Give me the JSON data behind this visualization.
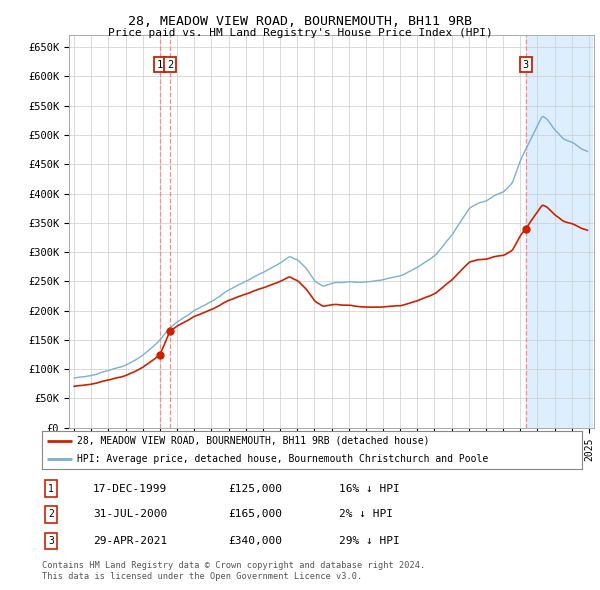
{
  "title": "28, MEADOW VIEW ROAD, BOURNEMOUTH, BH11 9RB",
  "subtitle": "Price paid vs. HM Land Registry's House Price Index (HPI)",
  "ylim": [
    0,
    670000
  ],
  "yticks": [
    0,
    50000,
    100000,
    150000,
    200000,
    250000,
    300000,
    350000,
    400000,
    450000,
    500000,
    550000,
    600000,
    650000
  ],
  "ytick_labels": [
    "£0",
    "£50K",
    "£100K",
    "£150K",
    "£200K",
    "£250K",
    "£300K",
    "£350K",
    "£400K",
    "£450K",
    "£500K",
    "£550K",
    "£600K",
    "£650K"
  ],
  "sale_t": [
    2000.0,
    2000.583,
    2021.333
  ],
  "sale_prices": [
    125000,
    165000,
    340000
  ],
  "sale_labels": [
    "1",
    "2",
    "3"
  ],
  "legend_line1": "28, MEADOW VIEW ROAD, BOURNEMOUTH, BH11 9RB (detached house)",
  "legend_line2": "HPI: Average price, detached house, Bournemouth Christchurch and Poole",
  "table_rows": [
    [
      "1",
      "17-DEC-1999",
      "£125,000",
      "16% ↓ HPI"
    ],
    [
      "2",
      "31-JUL-2000",
      "£165,000",
      "2% ↓ HPI"
    ],
    [
      "3",
      "29-APR-2021",
      "£340,000",
      "29% ↓ HPI"
    ]
  ],
  "footnote1": "Contains HM Land Registry data © Crown copyright and database right 2024.",
  "footnote2": "This data is licensed under the Open Government Licence v3.0.",
  "hpi_color": "#7ab0d4",
  "price_color": "#cc2200",
  "vline_color": "#ff8888",
  "shade_color": "#ddeeff",
  "background_color": "#ffffff",
  "grid_color": "#cccccc"
}
